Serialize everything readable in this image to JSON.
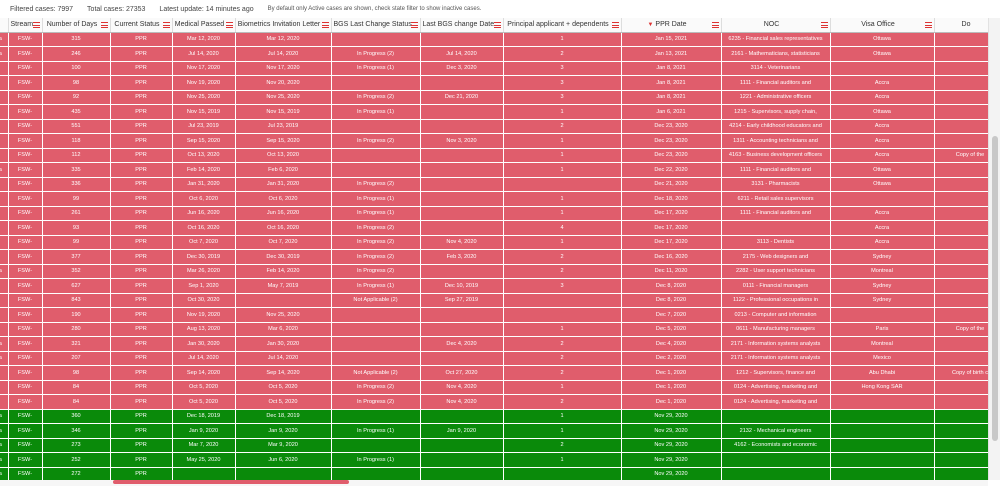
{
  "status": {
    "filtered": "Filtered cases: 7997",
    "total": "Total cases: 27353",
    "latest": "Latest update: 14 minutes ago",
    "note": "By default only Active cases are shown, check state filter to show inactive cases."
  },
  "columns": [
    "",
    "Stream",
    "Number of Days",
    "Current Status",
    "Medical Passed",
    "Biometrics Invitation Letter",
    "BGS Last Change Status",
    "Last BGS change Date",
    "Principal applicant + dependents",
    "PPR Date",
    "NOC",
    "Visa Office",
    "Do"
  ],
  "sort_column_index": 9,
  "rows": [
    {
      "status": "red",
      "cells": [
        "a",
        "FSW-",
        "315",
        "PPR",
        "Mar 12, 2020",
        "Mar 12, 2020",
        "",
        "",
        "1",
        "Jan 15, 2021",
        "6235 - Financial sales representatives",
        "Ottawa",
        ""
      ]
    },
    {
      "status": "red",
      "cells": [
        "a",
        "FSW-",
        "246",
        "PPR",
        "Jul 14, 2020",
        "Jul 14, 2020",
        "In Progress (2)",
        "Jul 14, 2020",
        "2",
        "Jan 13, 2021",
        "2161 - Mathematicians, statisticians",
        "Ottawa",
        ""
      ]
    },
    {
      "status": "red",
      "cells": [
        "",
        "FSW-",
        "100",
        "PPR",
        "Nov 17, 2020",
        "Nov 17, 2020",
        "In Progress (1)",
        "Dec 3, 2020",
        "3",
        "Jan 8, 2021",
        "3114 - Veterinarians",
        "",
        ""
      ]
    },
    {
      "status": "red",
      "cells": [
        "",
        "FSW-",
        "98",
        "PPR",
        "Nov 19, 2020",
        "Nov 20, 2020",
        "",
        "",
        "3",
        "Jan 8, 2021",
        "1111 - Financial auditors and",
        "Accra",
        ""
      ]
    },
    {
      "status": "red",
      "cells": [
        "",
        "FSW-",
        "92",
        "PPR",
        "Nov 25, 2020",
        "Nov 25, 2020",
        "In Progress (2)",
        "Dec 21, 2020",
        "3",
        "Jan 8, 2021",
        "1221 - Administrative officers",
        "Accra",
        ""
      ]
    },
    {
      "status": "red",
      "cells": [
        "",
        "FSW-",
        "435",
        "PPR",
        "Nov 15, 2019",
        "Nov 15, 2019",
        "In Progress (1)",
        "",
        "1",
        "Jan 6, 2021",
        "1215 - Supervisors, supply chain,",
        "Ottawa",
        ""
      ]
    },
    {
      "status": "red",
      "cells": [
        "",
        "FSW-",
        "551",
        "PPR",
        "Jul 23, 2019",
        "Jul 23, 2019",
        "",
        "",
        "2",
        "Dec 23, 2020",
        "4214 - Early childhood educators and",
        "Accra",
        ""
      ]
    },
    {
      "status": "red",
      "cells": [
        "",
        "FSW-",
        "118",
        "PPR",
        "Sep 15, 2020",
        "Sep 15, 2020",
        "In Progress (2)",
        "Nov 3, 2020",
        "1",
        "Dec 23, 2020",
        "1311 - Accounting technicians and",
        "Accra",
        ""
      ]
    },
    {
      "status": "red",
      "cells": [
        "",
        "FSW-",
        "112",
        "PPR",
        "Oct 13, 2020",
        "Oct 13, 2020",
        "",
        "",
        "1",
        "Dec 23, 2020",
        "4163 - Business development officers",
        "Accra",
        "Copy of the"
      ]
    },
    {
      "status": "red",
      "cells": [
        "a",
        "FSW-",
        "335",
        "PPR",
        "Feb 14, 2020",
        "Feb 6, 2020",
        "",
        "",
        "1",
        "Dec 22, 2020",
        "1111 - Financial auditors and",
        "Ottawa",
        ""
      ]
    },
    {
      "status": "red",
      "cells": [
        "",
        "FSW-",
        "336",
        "PPR",
        "Jan 31, 2020",
        "Jan 31, 2020",
        "In Progress (2)",
        "",
        "",
        "Dec 21, 2020",
        "3131 - Pharmacists",
        "Ottawa",
        ""
      ]
    },
    {
      "status": "red",
      "cells": [
        "",
        "FSW-",
        "99",
        "PPR",
        "Oct 6, 2020",
        "Oct 6, 2020",
        "In Progress (1)",
        "",
        "1",
        "Dec 18, 2020",
        "6211 - Retail sales supervisors",
        "",
        ""
      ]
    },
    {
      "status": "red",
      "cells": [
        "",
        "FSW-",
        "261",
        "PPR",
        "Jun 16, 2020",
        "Jun 16, 2020",
        "In Progress (1)",
        "",
        "1",
        "Dec 17, 2020",
        "1111 - Financial auditors and",
        "Accra",
        ""
      ]
    },
    {
      "status": "red",
      "cells": [
        "",
        "FSW-",
        "93",
        "PPR",
        "Oct 16, 2020",
        "Oct 16, 2020",
        "In Progress (2)",
        "",
        "4",
        "Dec 17, 2020",
        "",
        "Accra",
        ""
      ]
    },
    {
      "status": "red",
      "cells": [
        "",
        "FSW-",
        "99",
        "PPR",
        "Oct 7, 2020",
        "Oct 7, 2020",
        "In Progress (2)",
        "Nov 4, 2020",
        "1",
        "Dec 17, 2020",
        "3113 - Dentists",
        "Accra",
        ""
      ]
    },
    {
      "status": "red",
      "cells": [
        "",
        "FSW-",
        "377",
        "PPR",
        "Dec 30, 2019",
        "Dec 30, 2019",
        "In Progress (2)",
        "Feb 3, 2020",
        "2",
        "Dec 16, 2020",
        "2175 - Web designers and",
        "Sydney",
        ""
      ]
    },
    {
      "status": "red",
      "cells": [
        "a",
        "FSW-",
        "352",
        "PPR",
        "Mar 26, 2020",
        "Feb 14, 2020",
        "In Progress (2)",
        "",
        "2",
        "Dec 11, 2020",
        "2282 - User support technicians",
        "Montreal",
        ""
      ]
    },
    {
      "status": "red",
      "cells": [
        "",
        "FSW-",
        "627",
        "PPR",
        "Sep 1, 2020",
        "May 7, 2019",
        "In Progress (1)",
        "Dec 10, 2019",
        "3",
        "Dec 8, 2020",
        "0111 - Financial managers",
        "Sydney",
        ""
      ]
    },
    {
      "status": "red",
      "cells": [
        "",
        "FSW-",
        "843",
        "PPR",
        "Oct 30, 2020",
        "",
        "Not Applicable (2)",
        "Sep 27, 2019",
        "",
        "Dec 8, 2020",
        "1122 - Professional occupations in",
        "Sydney",
        ""
      ]
    },
    {
      "status": "red",
      "cells": [
        "",
        "FSW-",
        "190",
        "PPR",
        "Nov 19, 2020",
        "Nov 25, 2020",
        "",
        "",
        "",
        "Dec 7, 2020",
        "0213 - Computer and information",
        "",
        ""
      ]
    },
    {
      "status": "red",
      "cells": [
        "",
        "FSW-",
        "280",
        "PPR",
        "Aug 13, 2020",
        "Mar 6, 2020",
        "",
        "",
        "1",
        "Dec 5, 2020",
        "0611 - Manufacturing managers",
        "Paris",
        "Copy of the"
      ]
    },
    {
      "status": "red",
      "cells": [
        "a",
        "FSW-",
        "321",
        "PPR",
        "Jan 30, 2020",
        "Jan 30, 2020",
        "",
        "Dec 4, 2020",
        "2",
        "Dec 4, 2020",
        "2171 - Information systems analysts",
        "Montreal",
        ""
      ]
    },
    {
      "status": "red",
      "cells": [
        "a",
        "FSW-",
        "207",
        "PPR",
        "Jul 14, 2020",
        "Jul 14, 2020",
        "",
        "",
        "2",
        "Dec 2, 2020",
        "2171 - Information systems analysts",
        "Mexico",
        ""
      ]
    },
    {
      "status": "red",
      "cells": [
        "",
        "FSW-",
        "98",
        "PPR",
        "Sep 14, 2020",
        "Sep 14, 2020",
        "Not Applicable (2)",
        "Oct 27, 2020",
        "2",
        "Dec 1, 2020",
        "1212 - Supervisors, finance and",
        "Abu Dhabi",
        "Copy of birth c"
      ]
    },
    {
      "status": "red",
      "cells": [
        "",
        "FSW-",
        "84",
        "PPR",
        "Oct 5, 2020",
        "Oct 5, 2020",
        "In Progress (2)",
        "Nov 4, 2020",
        "1",
        "Dec 1, 2020",
        "0124 - Advertising, marketing and",
        "Hong Kong SAR",
        ""
      ]
    },
    {
      "status": "red",
      "cells": [
        "",
        "FSW-",
        "84",
        "PPR",
        "Oct 5, 2020",
        "Oct 5, 2020",
        "In Progress (2)",
        "Nov 4, 2020",
        "2",
        "Dec 1, 2020",
        "0124 - Advertising, marketing and",
        "",
        ""
      ]
    },
    {
      "status": "green",
      "cells": [
        "a",
        "FSW-",
        "360",
        "PPR",
        "Dec 18, 2019",
        "Dec 18, 2019",
        "",
        "",
        "1",
        "Nov 29, 2020",
        "",
        "",
        ""
      ]
    },
    {
      "status": "green",
      "cells": [
        "a",
        "FSW-",
        "346",
        "PPR",
        "Jan 9, 2020",
        "Jan 9, 2020",
        "In Progress (1)",
        "Jan 9, 2020",
        "1",
        "Nov 29, 2020",
        "2132 - Mechanical engineers",
        "",
        ""
      ]
    },
    {
      "status": "green",
      "cells": [
        "a",
        "FSW-",
        "273",
        "PPR",
        "Mar 7, 2020",
        "Mar 9, 2020",
        "",
        "",
        "2",
        "Nov 29, 2020",
        "4162 - Economists and economic",
        "",
        ""
      ]
    },
    {
      "status": "green",
      "cells": [
        "a",
        "FSW-",
        "252",
        "PPR",
        "May 25, 2020",
        "Jun 6, 2020",
        "In Progress (1)",
        "",
        "1",
        "Nov 29, 2020",
        "",
        "",
        ""
      ]
    },
    {
      "status": "green",
      "cells": [
        "a",
        "FSW-",
        "272",
        "PPR",
        "",
        "",
        "",
        "",
        "",
        "Nov 29, 2020",
        "",
        "",
        ""
      ]
    }
  ]
}
